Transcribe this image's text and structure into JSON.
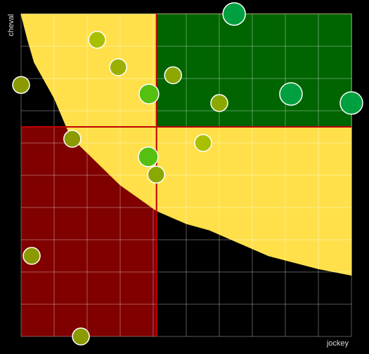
{
  "chart_data": {
    "type": "scatter",
    "x_label": "jockey",
    "y_label": "cheval",
    "xlim": [
      0,
      100
    ],
    "ylim": [
      0,
      100
    ],
    "xticks": [
      0,
      10,
      20,
      30,
      40,
      50,
      60,
      70,
      80,
      90,
      100
    ],
    "yticks": [
      0,
      10,
      20,
      30,
      40,
      50,
      60,
      70,
      80,
      90,
      100
    ],
    "grid": true,
    "regions": [
      {
        "x": [
          0,
          41
        ],
        "y": [
          0,
          65
        ],
        "color": "#800000"
      },
      {
        "x": [
          41,
          100
        ],
        "y": [
          65,
          100
        ],
        "color": "#006400"
      }
    ],
    "divider_color": "#c00000",
    "curve": {
      "x": [
        0,
        2,
        4,
        10,
        15,
        25,
        30,
        41,
        50,
        57,
        75,
        90,
        100
      ],
      "y": [
        100,
        92,
        85,
        74,
        62,
        52,
        47,
        39,
        35,
        33,
        25,
        21,
        19
      ],
      "color": "#ffe04a"
    },
    "x": [
      64.5,
      23,
      29.4,
      0,
      46,
      38.7,
      60,
      81.7,
      100,
      15.5,
      55.1,
      38.5,
      40.9,
      3.2,
      18.1
    ],
    "values": [
      100,
      92,
      83.5,
      78,
      81,
      75.2,
      72.4,
      75.2,
      72.4,
      61.3,
      60,
      55.7,
      50.2,
      25,
      0
    ],
    "sizes": [
      3,
      1,
      1,
      1,
      1,
      2,
      1,
      3,
      3,
      1,
      1,
      2,
      1,
      1,
      1
    ],
    "colors": [
      "#00a040",
      "#a8c000",
      "#99b000",
      "#8a9a00",
      "#8aa800",
      "#55c010",
      "#8aa800",
      "#00a040",
      "#00a040",
      "#8a9a00",
      "#a8c000",
      "#55c010",
      "#8aa800",
      "#8a9a00",
      "#8a9a00"
    ]
  }
}
